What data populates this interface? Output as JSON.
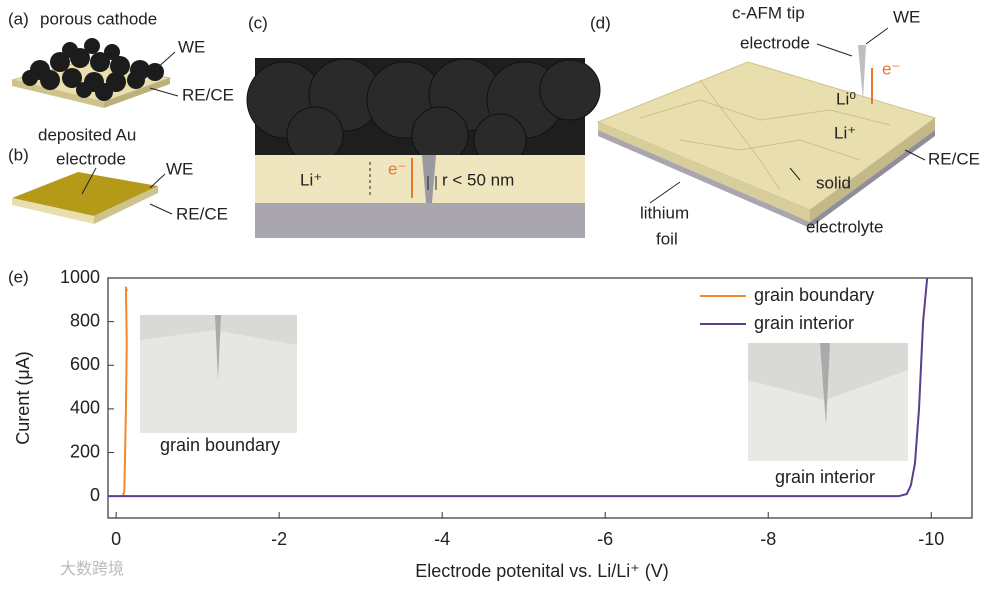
{
  "panels": [
    {
      "label": "(a)",
      "texts": [
        "porous cathode",
        "WE",
        "RE/CE"
      ]
    },
    {
      "label": "(b)",
      "texts": [
        "deposited Au",
        "electrode",
        "WE",
        "RE/CE"
      ]
    },
    {
      "label": "(c)",
      "texts": [
        "Li⁺",
        "e⁻",
        "r < 50 nm"
      ]
    },
    {
      "label": "(d)",
      "texts": [
        "c-AFM tip",
        "electrode",
        "WE",
        "e⁻",
        "Li⁰",
        "Li⁺",
        "RE/CE",
        "lithium",
        "foil",
        "solid",
        "electrolyte"
      ]
    }
  ],
  "watermark": "大数跨境",
  "chart_data": {
    "type": "line",
    "panel_label": "(e)",
    "xlabel": "Electrode potenital vs. Li/Li⁺ (V)",
    "ylabel": "Curent (μA)",
    "xlim": [
      0.1,
      -10.5
    ],
    "ylim": [
      -100,
      1000
    ],
    "xticks": [
      0,
      -2,
      -4,
      -6,
      -8,
      -10
    ],
    "yticks": [
      0,
      200,
      400,
      600,
      800,
      1000
    ],
    "legend": "upper right",
    "annotations": [
      "grain boundary",
      "grain interior"
    ],
    "series": [
      {
        "name": "grain boundary",
        "color": "#f0892a",
        "x": [
          -0.08,
          -0.1,
          -0.11,
          -0.12,
          -0.13,
          -0.12,
          -0.13
        ],
        "values": [
          0,
          20,
          200,
          400,
          700,
          960,
          940
        ]
      },
      {
        "name": "grain interior",
        "color": "#5b3f8c",
        "x": [
          0.1,
          -9.6,
          -9.7,
          -9.75,
          -9.8,
          -9.85,
          -9.9,
          -9.95
        ],
        "values": [
          0,
          0,
          10,
          50,
          150,
          400,
          800,
          1000
        ]
      }
    ]
  }
}
